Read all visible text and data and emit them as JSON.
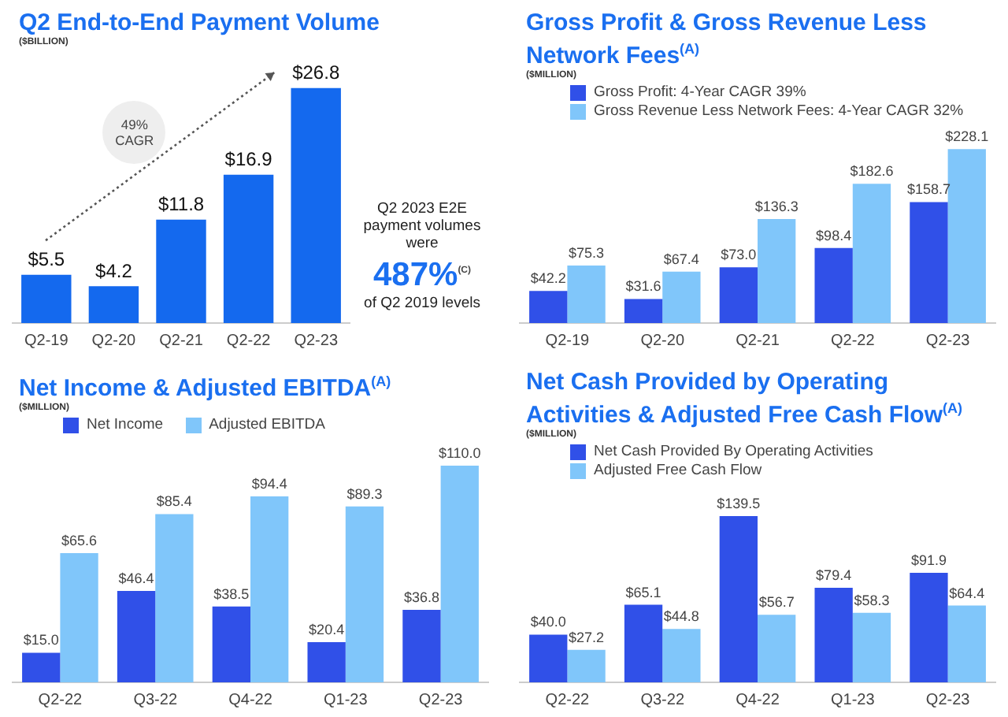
{
  "chart_data": [
    {
      "type": "bar",
      "title": "Q2 End-to-End Payment Volume",
      "subtitle": "($BILLION)",
      "categories": [
        "Q2-19",
        "Q2-20",
        "Q2-21",
        "Q2-22",
        "Q2-23"
      ],
      "grid": false,
      "legend": false,
      "tick_labels": "x",
      "series": [
        {
          "color": "#1469ee",
          "values": [
            5.5,
            4.2,
            11.8,
            16.9,
            26.8
          ],
          "value_labels": [
            "$5.5",
            "$4.2",
            "$11.8",
            "$16.9",
            "$26.8"
          ]
        }
      ],
      "annotations": [
        "49% CAGR",
        "Q2 2023 E2E payment volumes were",
        "487%$^{(C)}$",
        "of Q2 2019 levels"
      ]
    },
    {
      "type": "bar",
      "title": "Gross Profit & Gross Revenue Less Network Fees$^{(A)}$",
      "subtitle": "($MILLION)",
      "categories": [
        "Q2-19",
        "Q2-20",
        "Q2-21",
        "Q2-22",
        "Q2-23"
      ],
      "grid": false,
      "legend": "top",
      "tick_labels": "x",
      "series": [
        {
          "name": "Gross Profit: 4-Year CAGR 39%",
          "color": "#3050e8",
          "values": [
            42.2,
            31.6,
            73.0,
            98.4,
            158.7
          ],
          "value_labels": [
            "$42.2",
            "$31.6",
            "$73.0",
            "$98.4",
            "$158.7"
          ]
        },
        {
          "name": "Gross Revenue Less Network Fees: 4-Year CAGR 32%",
          "color": "#80c6fa",
          "values": [
            75.3,
            67.4,
            136.3,
            182.6,
            228.1
          ],
          "value_labels": [
            "$75.3",
            "$67.4",
            "$136.3",
            "$182.6",
            "$228.1"
          ]
        }
      ]
    },
    {
      "type": "bar",
      "title": "Net Income & Adjusted EBITDA$^{(A)}$",
      "subtitle": "($MILLION)",
      "categories": [
        "Q2-22",
        "Q3-22",
        "Q4-22",
        "Q1-23",
        "Q2-23"
      ],
      "grid": false,
      "legend": "top",
      "tick_labels": "x",
      "series": [
        {
          "name": "Net Income",
          "color": "#3050e8",
          "values": [
            15.0,
            46.4,
            38.5,
            20.4,
            36.8
          ],
          "value_labels": [
            "$15.0",
            "$46.4",
            "$38.5",
            "$20.4",
            "$36.8"
          ]
        },
        {
          "name": "Adjusted EBITDA",
          "color": "#80c6fa",
          "values": [
            65.6,
            85.4,
            94.4,
            89.3,
            110.0
          ],
          "value_labels": [
            "$65.6",
            "$85.4",
            "$94.4",
            "$89.3",
            "$110.0"
          ]
        }
      ]
    },
    {
      "type": "bar",
      "title": "Net Cash Provided by Operating Activities & Adjusted Free Cash Flow$^{(A)}$",
      "subtitle": "($MILLION)",
      "categories": [
        "Q2-22",
        "Q3-22",
        "Q4-22",
        "Q1-23",
        "Q2-23"
      ],
      "grid": false,
      "legend": "top",
      "tick_labels": "x",
      "series": [
        {
          "name": "Net Cash Provided By Operating Activities",
          "color": "#3050e8",
          "values": [
            40.0,
            65.1,
            139.5,
            79.4,
            91.9
          ],
          "value_labels": [
            "$40.0",
            "$65.1",
            "$139.5",
            "$79.4",
            "$91.9"
          ]
        },
        {
          "name": "Adjusted Free Cash Flow",
          "color": "#80c6fa",
          "values": [
            27.2,
            44.8,
            56.7,
            58.3,
            64.4
          ],
          "value_labels": [
            "$27.2",
            "$44.8",
            "$56.7",
            "$58.3",
            "$64.4"
          ]
        }
      ]
    }
  ]
}
